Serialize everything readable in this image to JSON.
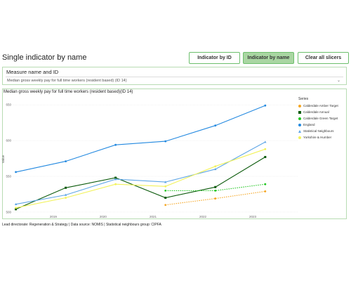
{
  "header": {
    "title": "Single indicator by name",
    "buttons": {
      "by_id": "Indicator by ID",
      "by_name": "Indicator by name",
      "clear": "Clear all slicers"
    }
  },
  "slicer": {
    "title": "Measure name and ID",
    "value": "Median gross weekly pay for full time workers (resident based) (ID 14)"
  },
  "chart_data": {
    "type": "line",
    "title": "Median gross weekly pay for full time workers (resident based)(ID 14)",
    "ylabel": "Value",
    "xlabel": "",
    "ylim": [
      495,
      660
    ],
    "yticks": [
      500,
      550,
      600,
      650
    ],
    "xlim": [
      2018.2,
      2023.9
    ],
    "xticks": [
      2019,
      2020,
      2021,
      2022,
      2023
    ],
    "legend_title": "Series",
    "legend_position": "right",
    "series": [
      {
        "name": "Calderdale Amber Target",
        "color": "#f5a623",
        "marker": "circle",
        "style": "dotted",
        "x": [
          2021.25,
          2022.25,
          2023.25
        ],
        "y": [
          510,
          519,
          529
        ]
      },
      {
        "name": "Calderdale Annual",
        "color": "#0b5a0b",
        "marker": "square",
        "style": "solid",
        "x": [
          2018.25,
          2019.25,
          2020.25,
          2021.25,
          2022.25,
          2023.25
        ],
        "y": [
          504,
          534,
          548,
          520,
          535,
          577
        ]
      },
      {
        "name": "Calderdale Green Target",
        "color": "#21c621",
        "marker": "circle",
        "style": "dotted",
        "x": [
          2021.25,
          2022.25,
          2023.25
        ],
        "y": [
          530,
          530,
          539
        ]
      },
      {
        "name": "England",
        "color": "#2389e0",
        "marker": "circle",
        "style": "solid",
        "x": [
          2018.25,
          2019.25,
          2020.25,
          2021.25,
          2022.25,
          2023.25
        ],
        "y": [
          556,
          571,
          594,
          599,
          621,
          649
        ]
      },
      {
        "name": "Statistical Neighbours",
        "color": "#5fa6e6",
        "marker": "triangle",
        "style": "solid",
        "x": [
          2018.25,
          2019.25,
          2020.25,
          2021.25,
          2022.25,
          2023.25
        ],
        "y": [
          511,
          524,
          546,
          542,
          560,
          598
        ]
      },
      {
        "name": "Yorkshire & Humber",
        "color": "#f2f25a",
        "marker": "circle",
        "style": "solid",
        "x": [
          2018.25,
          2019.25,
          2020.25,
          2021.25,
          2022.25,
          2023.25
        ],
        "y": [
          506,
          520,
          539,
          536,
          564,
          588
        ]
      }
    ]
  },
  "footer": {
    "text": "Lead directorate: Regeneration & Strategy | Data source: NOMIS | Statistical neighbours group: CIPFA"
  }
}
